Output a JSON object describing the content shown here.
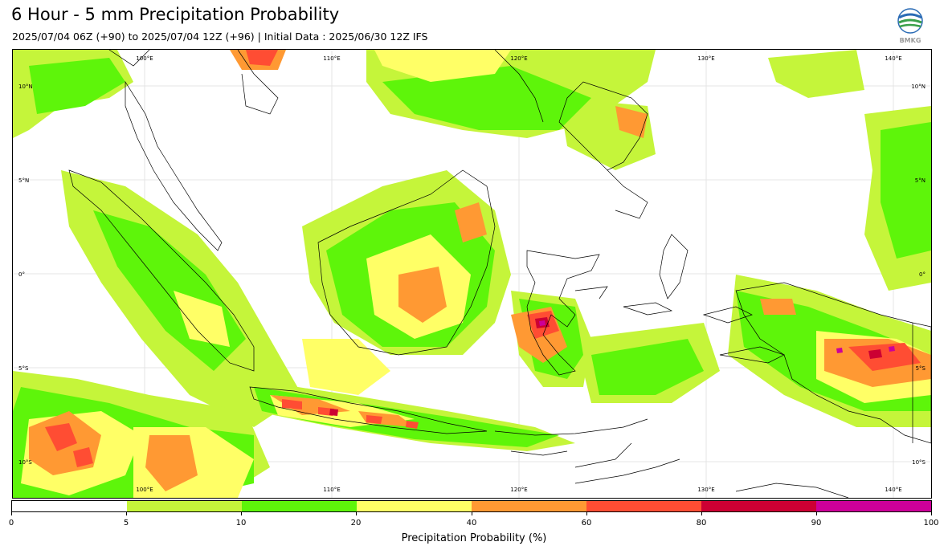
{
  "title": "6 Hour - 5 mm Precipitation Probability",
  "subtitle": "2025/07/04 06Z (+90) to 2025/07/04 12Z (+96) | Initial Data : 2025/06/30 12Z IFS",
  "logo": {
    "name": "bmkg-logo",
    "text": "BMKG"
  },
  "map": {
    "longitude_labels": [
      "100°E",
      "110°E",
      "120°E",
      "130°E",
      "140°E"
    ],
    "latitude_labels": [
      "10°N",
      "5°N",
      "0°",
      "5°S",
      "10°S"
    ]
  },
  "colorbar": {
    "label": "Precipitation Probability (%)",
    "ticks": [
      "0",
      "5",
      "10",
      "20",
      "40",
      "60",
      "80",
      "90",
      "100"
    ],
    "bins": [
      {
        "range": [
          0,
          5
        ],
        "color": "#ffffff"
      },
      {
        "range": [
          5,
          10
        ],
        "color": "#c5f53a"
      },
      {
        "range": [
          10,
          20
        ],
        "color": "#5ef50a"
      },
      {
        "range": [
          20,
          40
        ],
        "color": "#ffff66"
      },
      {
        "range": [
          40,
          60
        ],
        "color": "#ff9933"
      },
      {
        "range": [
          60,
          80
        ],
        "color": "#ff4d33"
      },
      {
        "range": [
          80,
          90
        ],
        "color": "#cc0033"
      },
      {
        "range": [
          90,
          100
        ],
        "color": "#cc0099"
      }
    ]
  }
}
